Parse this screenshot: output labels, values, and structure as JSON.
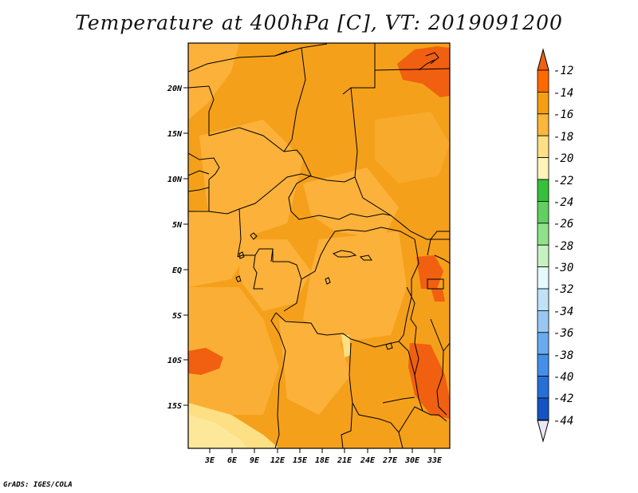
{
  "title": "Temperature at 400hPa [C], VT: 2019091200",
  "credit": "GrADS: IGES/COLA",
  "map": {
    "lat_labels": [
      "20N",
      "15N",
      "10N",
      "5N",
      "EQ",
      "5S",
      "10S",
      "15S"
    ],
    "lon_labels": [
      "3E",
      "6E",
      "9E",
      "12E",
      "15E",
      "18E",
      "21E",
      "24E",
      "27E",
      "30E",
      "33E"
    ]
  },
  "colorbar": {
    "labels": [
      "-12",
      "-14",
      "-16",
      "-18",
      "-20",
      "-22",
      "-24",
      "-26",
      "-28",
      "-30",
      "-32",
      "-34",
      "-36",
      "-38",
      "-40",
      "-42",
      "-44"
    ],
    "colors": [
      "#f06010",
      "#ff6a00",
      "#f59e10",
      "#fbb63c",
      "#fde084",
      "#fef4b8",
      "#36c03c",
      "#60d060",
      "#90e28a",
      "#c4f2c0",
      "#e4faf8",
      "#bfe2f8",
      "#98c8f2",
      "#6aaaf0",
      "#4490e8",
      "#2470d8",
      "#1454c4",
      "#0c2c90",
      "#e8e8f6"
    ]
  }
}
